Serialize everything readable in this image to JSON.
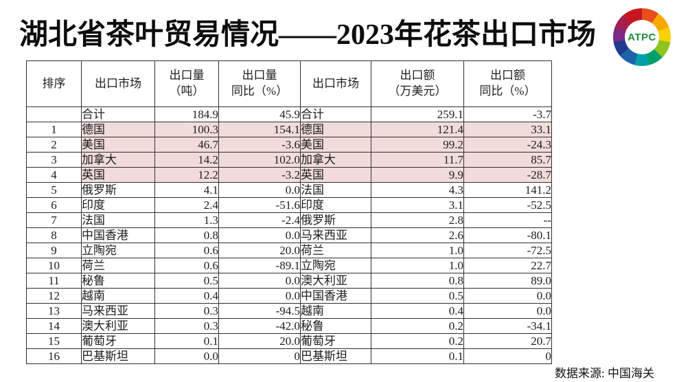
{
  "page": {
    "title": "湖北省茶叶贸易情况——2023年花茶出口市场",
    "source_note": "数据来源: 中国海关",
    "logo": {
      "text": "ATPC"
    },
    "colors": {
      "highlight_pink": "#f2dcdb",
      "border": "#2e2e2e",
      "logo_text_green": "#1e8a3c"
    }
  },
  "table": {
    "headers": [
      "排序",
      "出口市场",
      "出口量\n（吨）",
      "出口量\n同比（%）",
      "出口市场",
      "出口额\n（万美元）",
      "出口额\n同比（%）"
    ],
    "rows": [
      {
        "rank": "",
        "volume_market": "合计",
        "volume_tons": "184.9",
        "volume_yoy": "45.9",
        "value_market": "合计",
        "value_usd10k": "259.1",
        "value_yoy": "-3.7",
        "highlight": false
      },
      {
        "rank": "1",
        "volume_market": "德国",
        "volume_tons": "100.3",
        "volume_yoy": "154.1",
        "value_market": "德国",
        "value_usd10k": "121.4",
        "value_yoy": "33.1",
        "highlight": true
      },
      {
        "rank": "2",
        "volume_market": "美国",
        "volume_tons": "46.7",
        "volume_yoy": "-3.6",
        "value_market": "美国",
        "value_usd10k": "99.2",
        "value_yoy": "-24.3",
        "highlight": true
      },
      {
        "rank": "3",
        "volume_market": "加拿大",
        "volume_tons": "14.2",
        "volume_yoy": "102.0",
        "value_market": "加拿大",
        "value_usd10k": "11.7",
        "value_yoy": "85.7",
        "highlight": true
      },
      {
        "rank": "4",
        "volume_market": "英国",
        "volume_tons": "12.2",
        "volume_yoy": "-3.2",
        "value_market": "英国",
        "value_usd10k": "9.9",
        "value_yoy": "-28.7",
        "highlight": true
      },
      {
        "rank": "5",
        "volume_market": "俄罗斯",
        "volume_tons": "4.1",
        "volume_yoy": "0.0",
        "value_market": "法国",
        "value_usd10k": "4.3",
        "value_yoy": "141.2",
        "highlight": false
      },
      {
        "rank": "6",
        "volume_market": "印度",
        "volume_tons": "2.4",
        "volume_yoy": "-51.6",
        "value_market": "印度",
        "value_usd10k": "3.1",
        "value_yoy": "-52.5",
        "highlight": false
      },
      {
        "rank": "7",
        "volume_market": "法国",
        "volume_tons": "1.3",
        "volume_yoy": "-2.4",
        "value_market": "俄罗斯",
        "value_usd10k": "2.8",
        "value_yoy": "--",
        "highlight": false
      },
      {
        "rank": "8",
        "volume_market": "中国香港",
        "volume_tons": "0.8",
        "volume_yoy": "0.0",
        "value_market": "马来西亚",
        "value_usd10k": "2.6",
        "value_yoy": "-80.1",
        "highlight": false
      },
      {
        "rank": "9",
        "volume_market": "立陶宛",
        "volume_tons": "0.6",
        "volume_yoy": "20.0",
        "value_market": "荷兰",
        "value_usd10k": "1.0",
        "value_yoy": "-72.5",
        "highlight": false
      },
      {
        "rank": "10",
        "volume_market": "荷兰",
        "volume_tons": "0.6",
        "volume_yoy": "-89.1",
        "value_market": "立陶宛",
        "value_usd10k": "1.0",
        "value_yoy": "22.7",
        "highlight": false
      },
      {
        "rank": "11",
        "volume_market": "秘鲁",
        "volume_tons": "0.5",
        "volume_yoy": "0.0",
        "value_market": "澳大利亚",
        "value_usd10k": "0.8",
        "value_yoy": "89.0",
        "highlight": false
      },
      {
        "rank": "12",
        "volume_market": "越南",
        "volume_tons": "0.4",
        "volume_yoy": "0.0",
        "value_market": "中国香港",
        "value_usd10k": "0.5",
        "value_yoy": "0.0",
        "highlight": false
      },
      {
        "rank": "13",
        "volume_market": "马来西亚",
        "volume_tons": "0.3",
        "volume_yoy": "-94.5",
        "value_market": "越南",
        "value_usd10k": "0.4",
        "value_yoy": "0.0",
        "highlight": false
      },
      {
        "rank": "14",
        "volume_market": "澳大利亚",
        "volume_tons": "0.3",
        "volume_yoy": "-42.0",
        "value_market": "秘鲁",
        "value_usd10k": "0.2",
        "value_yoy": "-34.1",
        "highlight": false
      },
      {
        "rank": "15",
        "volume_market": "葡萄牙",
        "volume_tons": "0.1",
        "volume_yoy": "20.0",
        "value_market": "葡萄牙",
        "value_usd10k": "0.2",
        "value_yoy": "20.7",
        "highlight": false
      },
      {
        "rank": "16",
        "volume_market": "巴基斯坦",
        "volume_tons": "0.0",
        "volume_yoy": "0",
        "value_market": "巴基斯坦",
        "value_usd10k": "0.1",
        "value_yoy": "0",
        "highlight": false
      }
    ]
  }
}
